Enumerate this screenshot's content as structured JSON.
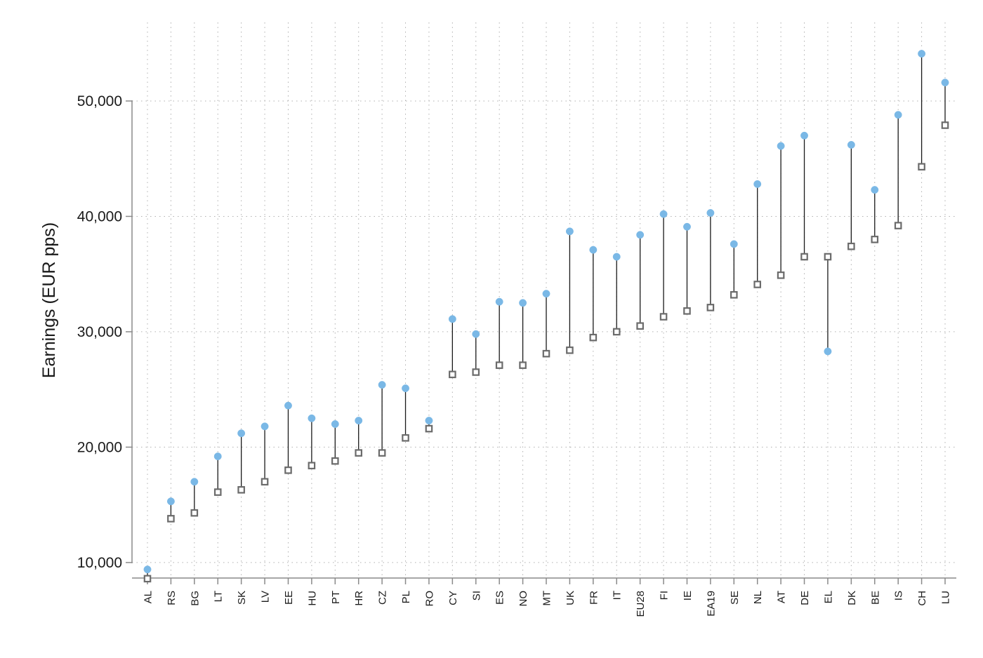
{
  "chart_data": {
    "type": "scatter",
    "ylabel": "Earnings (EUR pps)",
    "xlabel": "",
    "ylim": [
      7300,
      55500
    ],
    "yticks": [
      10000,
      20000,
      30000,
      40000,
      50000
    ],
    "ytick_labels": [
      "10,000",
      "20,000",
      "30,000",
      "40,000",
      "50,000"
    ],
    "grid": true,
    "categories": [
      "AL",
      "RS",
      "BG",
      "LT",
      "SK",
      "LV",
      "EE",
      "HU",
      "PT",
      "HR",
      "CZ",
      "PL",
      "RO",
      "CY",
      "SI",
      "ES",
      "NO",
      "MT",
      "UK",
      "FR",
      "IT",
      "EU28",
      "FI",
      "IE",
      "EA19",
      "SE",
      "NL",
      "AT",
      "DE",
      "EL",
      "DK",
      "BE",
      "IS",
      "CH",
      "LU"
    ],
    "series": [
      {
        "marker": "circle",
        "color": "#7ab8e6",
        "values": [
          9400,
          15300,
          17000,
          19200,
          21200,
          21800,
          23600,
          22500,
          22000,
          22300,
          25400,
          25100,
          22300,
          31100,
          29800,
          32600,
          32500,
          33300,
          38700,
          37100,
          36500,
          38400,
          40200,
          39100,
          40300,
          37600,
          42800,
          46100,
          47000,
          28300,
          46200,
          42300,
          48800,
          54100,
          51600
        ]
      },
      {
        "marker": "hollow-square",
        "color": "#6b6b6b",
        "values": [
          8600,
          13800,
          14300,
          16100,
          16300,
          17000,
          18000,
          18400,
          18800,
          19500,
          19500,
          20800,
          21600,
          26300,
          26500,
          27100,
          27100,
          28100,
          28400,
          29500,
          30000,
          30500,
          31300,
          31800,
          32100,
          33200,
          34100,
          34900,
          36500,
          36500,
          37400,
          38000,
          39200,
          44300,
          47900
        ]
      }
    ]
  }
}
